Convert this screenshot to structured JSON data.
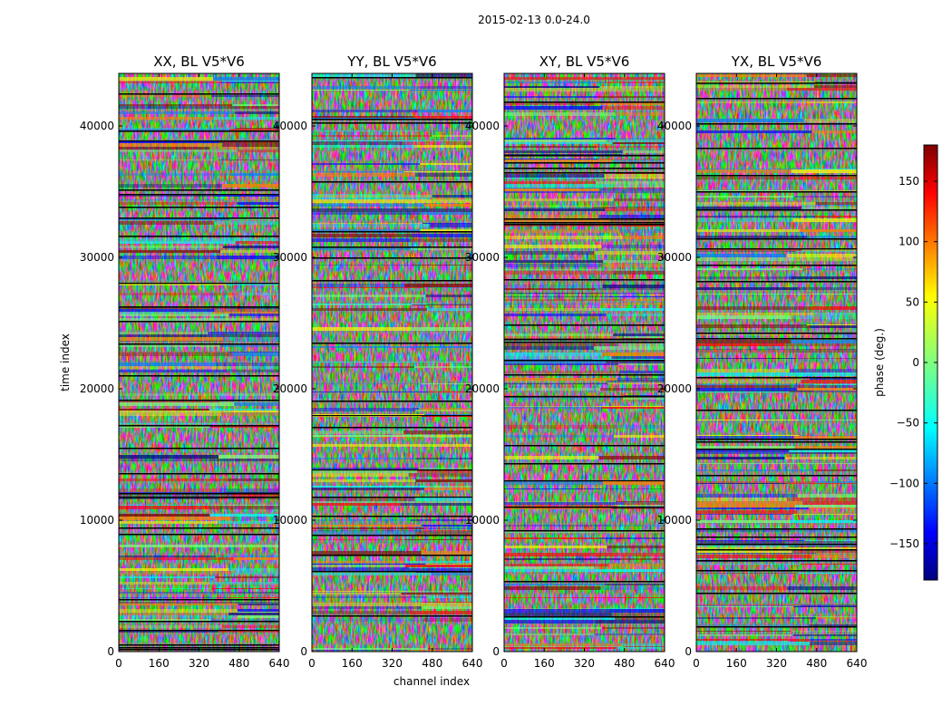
{
  "figure": {
    "suptitle": "2015-02-13 0.0-24.0"
  },
  "colorscale": {
    "name": "jet",
    "stops": [
      "#00007f",
      "#0000ff",
      "#007fff",
      "#00ffff",
      "#7fff7f",
      "#ffff00",
      "#ff7f00",
      "#ff0000",
      "#7f0000"
    ]
  },
  "chart_data": {
    "type": "heatmap",
    "xlabel": "channel index",
    "ylabel": "time index",
    "xlim": [
      0,
      640
    ],
    "ylim": [
      0,
      44000
    ],
    "xticks": [
      0,
      160,
      320,
      480,
      640
    ],
    "yticks": [
      0,
      10000,
      20000,
      30000,
      40000
    ],
    "value_range": [
      -180,
      180
    ],
    "panels": [
      {
        "title": "XX, BL V5*V6"
      },
      {
        "title": "YY, BL V5*V6"
      },
      {
        "title": "XY, BL V5*V6"
      },
      {
        "title": "YX, BL V5*V6"
      }
    ],
    "colorbar": {
      "label": "phase (deg.)",
      "range": [
        -180,
        180
      ],
      "ticks": [
        150,
        100,
        50,
        0,
        -50,
        -100,
        -150
      ],
      "tick_labels": [
        "150",
        "100",
        "50",
        "0",
        "−50",
        "−100",
        "−150"
      ]
    }
  }
}
